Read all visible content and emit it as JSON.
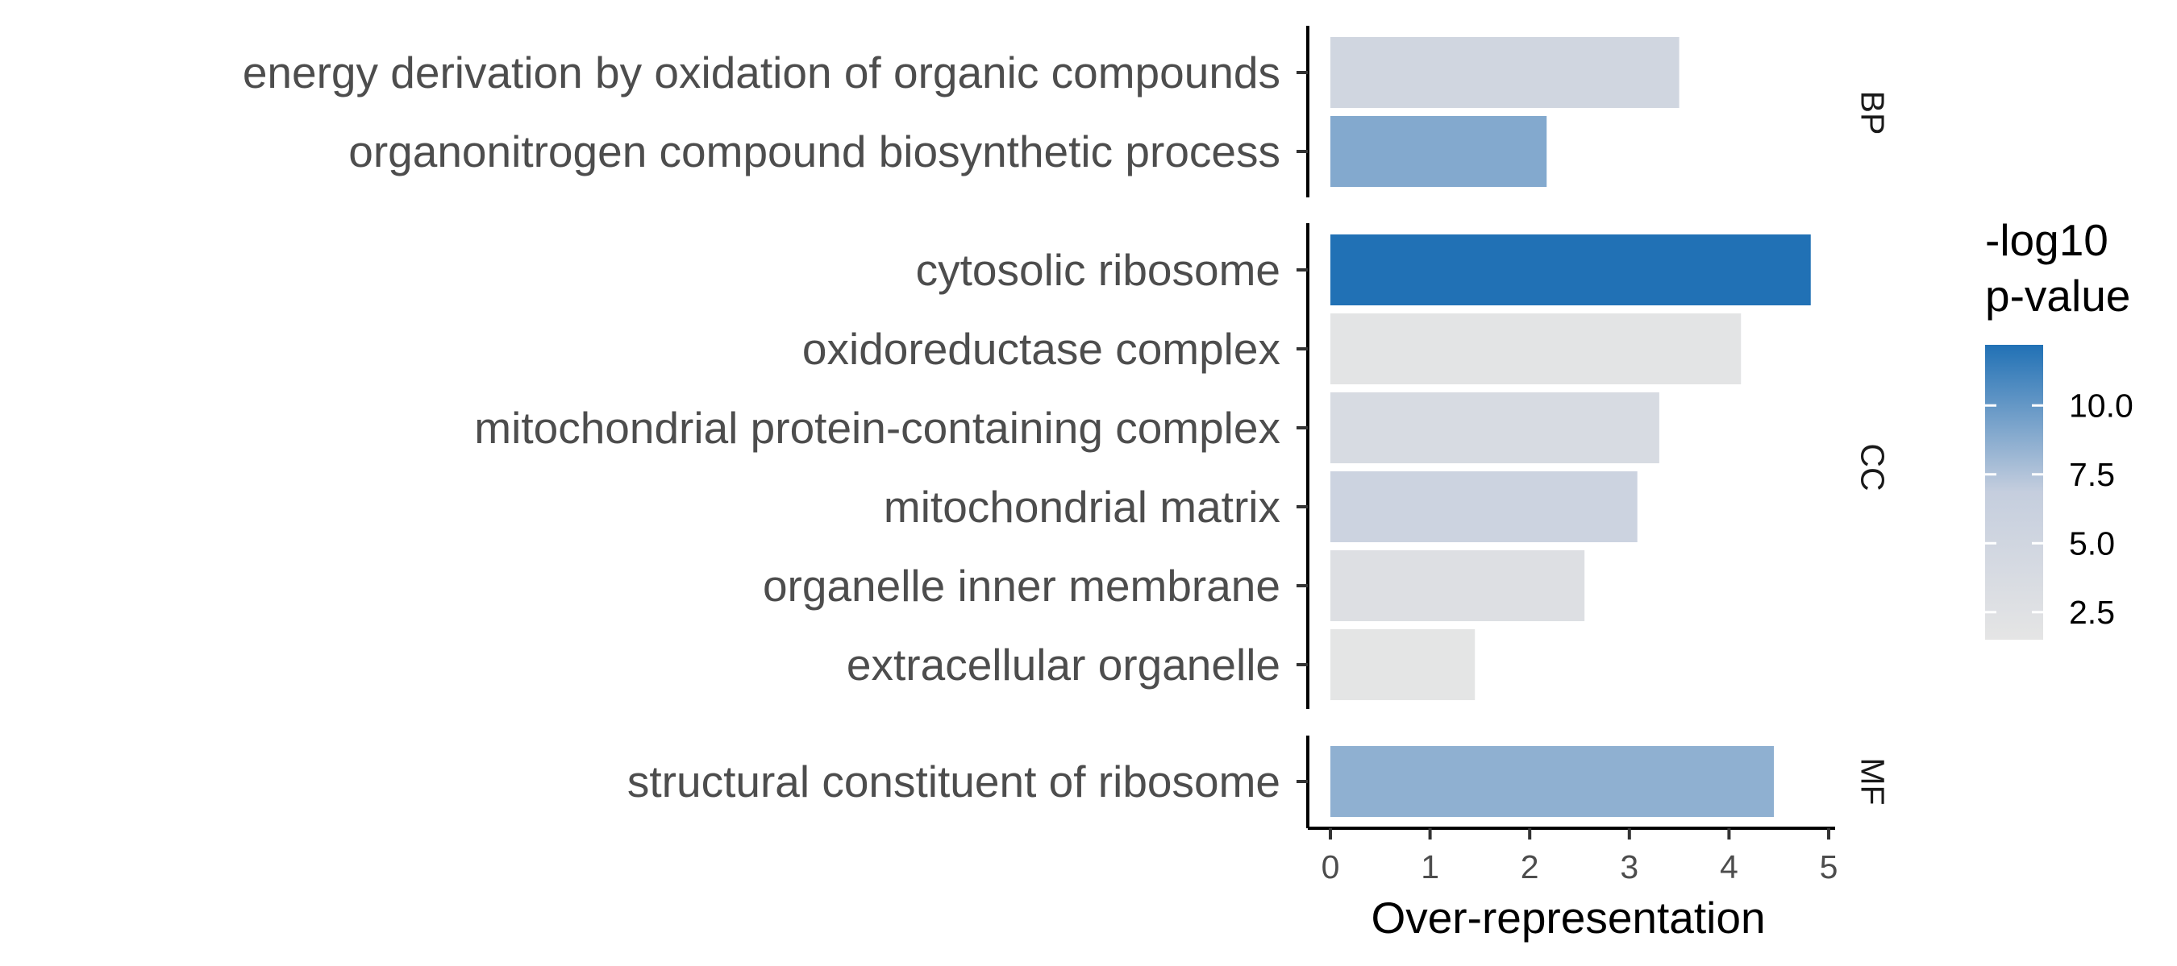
{
  "chart_data": {
    "type": "bar",
    "orientation": "horizontal",
    "xlabel": "Over-representation",
    "xlim": [
      0,
      5
    ],
    "xticks": [
      "0",
      "1",
      "2",
      "3",
      "4",
      "5"
    ],
    "grid": false,
    "legend": {
      "title_lines": [
        "-log10",
        "p-value"
      ],
      "placement": "right",
      "ticks": [
        "2.5",
        "5.0",
        "7.5",
        "10.0"
      ],
      "tick_values": [
        2.5,
        5.0,
        7.5,
        10.0
      ],
      "range": [
        1.5,
        12.2
      ],
      "color_low": "#e5e5e5",
      "color_mid": "#c5cede",
      "color_high": "#2171b5"
    },
    "facets": [
      {
        "name": "BP",
        "categories": [
          "energy derivation by oxidation of organic compounds",
          "organonitrogen compound biosynthetic process"
        ],
        "values": [
          3.5,
          2.17
        ],
        "pvalues": [
          5.0,
          9.0
        ]
      },
      {
        "name": "CC",
        "categories": [
          "cytosolic ribosome",
          "oxidoreductase complex",
          "mitochondrial protein-containing complex",
          "mitochondrial matrix",
          "organelle inner membrane",
          "extracellular organelle"
        ],
        "values": [
          4.82,
          4.12,
          3.3,
          3.08,
          2.55,
          1.45
        ],
        "pvalues": [
          12.2,
          1.8,
          3.8,
          5.6,
          2.9,
          1.6
        ]
      },
      {
        "name": "MF",
        "categories": [
          "structural constituent of ribosome"
        ],
        "values": [
          4.45
        ],
        "pvalues": [
          8.6
        ]
      }
    ]
  }
}
